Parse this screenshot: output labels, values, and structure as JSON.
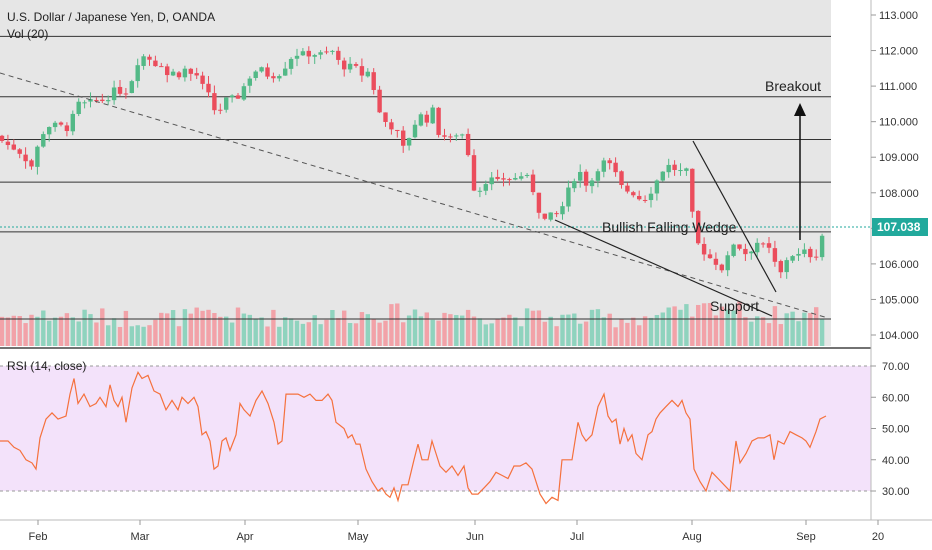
{
  "colors": {
    "up": "#53b987",
    "down": "#eb4d5c",
    "vol_up": "#8fd3be",
    "vol_down": "#f2a2a8",
    "rsi_line": "#f5713d",
    "rsi_band": "#f3e2fa",
    "pane_bg": "#e6e6e6",
    "last_price_bg": "#21a99c",
    "level_line": "#333333",
    "trend_dash": "#555555"
  },
  "chart_data": [
    {
      "type": "candlestick",
      "title": "U.S. Dollar / Japanese Yen, D, OANDA",
      "volume_label": "Vol (20)",
      "ylim": [
        103.7,
        113.2
      ],
      "yticks": [
        "113.000",
        "112.000",
        "111.000",
        "110.000",
        "109.000",
        "108.000",
        "107.000",
        "106.000",
        "105.000",
        "104.000"
      ],
      "last_price": "107.038",
      "x_labels": [
        "Feb",
        "Mar",
        "Apr",
        "May",
        "Jun",
        "Jul",
        "Aug",
        "Sep",
        "20"
      ],
      "close_path": [
        [
          0,
          109.5
        ],
        [
          10,
          109.3
        ],
        [
          18,
          109.2
        ],
        [
          24,
          109.0
        ],
        [
          33,
          108.7
        ],
        [
          40,
          109.6
        ],
        [
          50,
          109.9
        ],
        [
          58,
          109.9
        ],
        [
          68,
          109.8
        ],
        [
          78,
          110.5
        ],
        [
          86,
          110.5
        ],
        [
          95,
          110.6
        ],
        [
          105,
          110.6
        ],
        [
          115,
          110.9
        ],
        [
          125,
          110.8
        ],
        [
          132,
          111.2
        ],
        [
          138,
          111.7
        ],
        [
          146,
          111.9
        ],
        [
          154,
          111.6
        ],
        [
          160,
          111.7
        ],
        [
          166,
          111.3
        ],
        [
          172,
          111.4
        ],
        [
          178,
          111.3
        ],
        [
          186,
          111.5
        ],
        [
          192,
          111.3
        ],
        [
          198,
          111.3
        ],
        [
          204,
          110.9
        ],
        [
          210,
          110.7
        ],
        [
          216,
          110.2
        ],
        [
          222,
          110.4
        ],
        [
          228,
          110.7
        ],
        [
          236,
          110.6
        ],
        [
          242,
          110.9
        ],
        [
          248,
          111.2
        ],
        [
          254,
          111.4
        ],
        [
          260,
          111.5
        ],
        [
          268,
          111.3
        ],
        [
          276,
          111.3
        ],
        [
          282,
          111.4
        ],
        [
          288,
          111.7
        ],
        [
          294,
          111.9
        ],
        [
          304,
          111.9
        ],
        [
          314,
          111.9
        ],
        [
          324,
          111.9
        ],
        [
          332,
          112.0
        ],
        [
          338,
          111.7
        ],
        [
          346,
          111.5
        ],
        [
          354,
          111.6
        ],
        [
          360,
          111.3
        ],
        [
          368,
          111.4
        ],
        [
          374,
          110.9
        ],
        [
          380,
          110.2
        ],
        [
          388,
          109.9
        ],
        [
          396,
          109.8
        ],
        [
          402,
          109.2
        ],
        [
          408,
          109.5
        ],
        [
          414,
          109.9
        ],
        [
          420,
          110.2
        ],
        [
          426,
          110.0
        ],
        [
          432,
          110.4
        ],
        [
          438,
          109.7
        ],
        [
          444,
          109.6
        ],
        [
          450,
          109.5
        ],
        [
          458,
          109.7
        ],
        [
          466,
          109.6
        ],
        [
          472,
          108.2
        ],
        [
          478,
          108.0
        ],
        [
          484,
          108.3
        ],
        [
          490,
          108.4
        ],
        [
          498,
          108.3
        ],
        [
          504,
          108.4
        ],
        [
          510,
          108.4
        ],
        [
          516,
          108.4
        ],
        [
          522,
          108.5
        ],
        [
          528,
          108.4
        ],
        [
          534,
          108.0
        ],
        [
          540,
          107.4
        ],
        [
          546,
          107.2
        ],
        [
          552,
          107.4
        ],
        [
          558,
          107.4
        ],
        [
          564,
          107.7
        ],
        [
          570,
          108.2
        ],
        [
          576,
          108.5
        ],
        [
          582,
          108.6
        ],
        [
          588,
          108.1
        ],
        [
          594,
          108.5
        ],
        [
          600,
          108.8
        ],
        [
          606,
          108.9
        ],
        [
          612,
          108.7
        ],
        [
          618,
          108.4
        ],
        [
          624,
          108.0
        ],
        [
          630,
          108.1
        ],
        [
          636,
          107.9
        ],
        [
          642,
          107.8
        ],
        [
          648,
          107.9
        ],
        [
          654,
          108.2
        ],
        [
          660,
          108.5
        ],
        [
          666,
          108.8
        ],
        [
          672,
          108.7
        ],
        [
          680,
          108.6
        ],
        [
          688,
          108.6
        ],
        [
          694,
          106.9
        ],
        [
          700,
          106.4
        ],
        [
          706,
          106.3
        ],
        [
          712,
          106.1
        ],
        [
          718,
          106.0
        ],
        [
          724,
          105.8
        ],
        [
          730,
          106.4
        ],
        [
          736,
          106.7
        ],
        [
          742,
          106.3
        ],
        [
          748,
          106.3
        ],
        [
          754,
          106.5
        ],
        [
          760,
          106.7
        ],
        [
          766,
          106.3
        ],
        [
          772,
          106.5
        ],
        [
          778,
          105.5
        ],
        [
          784,
          106.0
        ],
        [
          790,
          106.3
        ],
        [
          796,
          106.2
        ],
        [
          802,
          106.3
        ],
        [
          808,
          106.4
        ],
        [
          814,
          106.0
        ],
        [
          820,
          106.7
        ],
        [
          826,
          107.0
        ]
      ],
      "volume_path": [
        [
          0,
          0.55
        ],
        [
          60,
          0.55
        ],
        [
          140,
          0.5
        ],
        [
          220,
          0.55
        ],
        [
          300,
          0.5
        ],
        [
          380,
          0.6
        ],
        [
          440,
          0.6
        ],
        [
          500,
          0.55
        ],
        [
          560,
          0.5
        ],
        [
          620,
          0.5
        ],
        [
          690,
          0.6
        ],
        [
          720,
          0.75
        ],
        [
          760,
          0.55
        ],
        [
          826,
          0.6
        ]
      ],
      "annotations": [
        "Breakout",
        "Bullish Falling Wedge",
        "Support"
      ]
    },
    {
      "type": "line",
      "title": "RSI (14, close)",
      "ylim": [
        22,
        72
      ],
      "yticks": [
        "70.00",
        "60.00",
        "50.00",
        "40.00",
        "30.00"
      ],
      "band": [
        30,
        70
      ],
      "values_path": [
        [
          0,
          46
        ],
        [
          8,
          46
        ],
        [
          14,
          44
        ],
        [
          20,
          43
        ],
        [
          26,
          40
        ],
        [
          32,
          39
        ],
        [
          36,
          37
        ],
        [
          40,
          47
        ],
        [
          46,
          53
        ],
        [
          52,
          55
        ],
        [
          58,
          53
        ],
        [
          66,
          54
        ],
        [
          70,
          61
        ],
        [
          74,
          66
        ],
        [
          78,
          58
        ],
        [
          84,
          61
        ],
        [
          90,
          57
        ],
        [
          96,
          58
        ],
        [
          100,
          60
        ],
        [
          106,
          57
        ],
        [
          110,
          64
        ],
        [
          114,
          59
        ],
        [
          118,
          57
        ],
        [
          122,
          60
        ],
        [
          126,
          52
        ],
        [
          132,
          63
        ],
        [
          138,
          68
        ],
        [
          142,
          66
        ],
        [
          148,
          67
        ],
        [
          154,
          62
        ],
        [
          160,
          61
        ],
        [
          166,
          56
        ],
        [
          172,
          59
        ],
        [
          178,
          56
        ],
        [
          182,
          60
        ],
        [
          188,
          58
        ],
        [
          194,
          60
        ],
        [
          198,
          57
        ],
        [
          202,
          48
        ],
        [
          206,
          49
        ],
        [
          210,
          46
        ],
        [
          214,
          37
        ],
        [
          218,
          38
        ],
        [
          222,
          46
        ],
        [
          226,
          47
        ],
        [
          230,
          43
        ],
        [
          236,
          48
        ],
        [
          240,
          58
        ],
        [
          244,
          56
        ],
        [
          250,
          54
        ],
        [
          256,
          59
        ],
        [
          262,
          62
        ],
        [
          268,
          58
        ],
        [
          274,
          52
        ],
        [
          278,
          45
        ],
        [
          282,
          46
        ],
        [
          286,
          61
        ],
        [
          292,
          61
        ],
        [
          298,
          61
        ],
        [
          304,
          60
        ],
        [
          310,
          61
        ],
        [
          316,
          59
        ],
        [
          322,
          59
        ],
        [
          328,
          61
        ],
        [
          332,
          59
        ],
        [
          336,
          52
        ],
        [
          340,
          51
        ],
        [
          344,
          50
        ],
        [
          348,
          47
        ],
        [
          352,
          48
        ],
        [
          356,
          45
        ],
        [
          360,
          45
        ],
        [
          366,
          37
        ],
        [
          372,
          33
        ],
        [
          378,
          30
        ],
        [
          382,
          31
        ],
        [
          386,
          29
        ],
        [
          390,
          28
        ],
        [
          394,
          31
        ],
        [
          398,
          27
        ],
        [
          402,
          32
        ],
        [
          408,
          32
        ],
        [
          414,
          40
        ],
        [
          418,
          45
        ],
        [
          422,
          40
        ],
        [
          428,
          40
        ],
        [
          432,
          46
        ],
        [
          436,
          42
        ],
        [
          440,
          38
        ],
        [
          446,
          36
        ],
        [
          452,
          38
        ],
        [
          458,
          35
        ],
        [
          464,
          38
        ],
        [
          468,
          31
        ],
        [
          472,
          29
        ],
        [
          478,
          29
        ],
        [
          484,
          31
        ],
        [
          490,
          33
        ],
        [
          496,
          36
        ],
        [
          502,
          35
        ],
        [
          508,
          34
        ],
        [
          514,
          38
        ],
        [
          520,
          38
        ],
        [
          526,
          39
        ],
        [
          532,
          37
        ],
        [
          536,
          33
        ],
        [
          540,
          29
        ],
        [
          546,
          26
        ],
        [
          552,
          28
        ],
        [
          558,
          27
        ],
        [
          562,
          40
        ],
        [
          566,
          40
        ],
        [
          572,
          40
        ],
        [
          578,
          52
        ],
        [
          582,
          48
        ],
        [
          586,
          46
        ],
        [
          592,
          48
        ],
        [
          598,
          57
        ],
        [
          604,
          61
        ],
        [
          608,
          54
        ],
        [
          612,
          52
        ],
        [
          616,
          53
        ],
        [
          620,
          45
        ],
        [
          624,
          50
        ],
        [
          628,
          46
        ],
        [
          632,
          48
        ],
        [
          636,
          42
        ],
        [
          642,
          40
        ],
        [
          648,
          48
        ],
        [
          652,
          49
        ],
        [
          656,
          53
        ],
        [
          660,
          55
        ],
        [
          666,
          57
        ],
        [
          672,
          59
        ],
        [
          678,
          57
        ],
        [
          682,
          59
        ],
        [
          686,
          55
        ],
        [
          690,
          53
        ],
        [
          694,
          37
        ],
        [
          700,
          33
        ],
        [
          706,
          30
        ],
        [
          712,
          36
        ],
        [
          718,
          34
        ],
        [
          724,
          32
        ],
        [
          730,
          30
        ],
        [
          736,
          46
        ],
        [
          740,
          39
        ],
        [
          746,
          42
        ],
        [
          752,
          46
        ],
        [
          758,
          47
        ],
        [
          764,
          47
        ],
        [
          770,
          48
        ],
        [
          774,
          40
        ],
        [
          778,
          46
        ],
        [
          784,
          45
        ],
        [
          790,
          49
        ],
        [
          796,
          48
        ],
        [
          802,
          47
        ],
        [
          806,
          46
        ],
        [
          810,
          44
        ],
        [
          816,
          49
        ],
        [
          820,
          53
        ],
        [
          826,
          54
        ]
      ]
    }
  ]
}
